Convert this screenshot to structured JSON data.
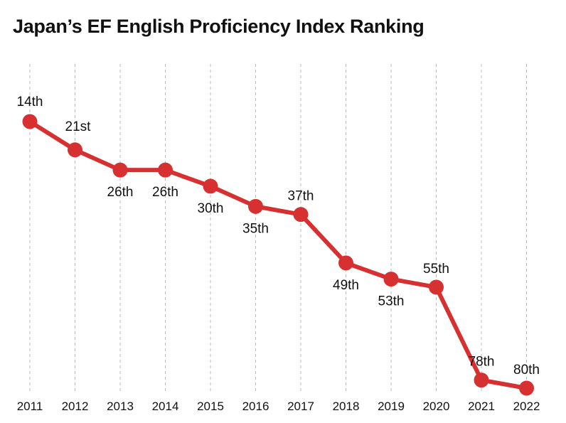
{
  "chart_data": {
    "type": "line",
    "title": "Japan’s EF English Proficiency Index Ranking",
    "xlabel": "",
    "ylabel": "",
    "categories": [
      "2011",
      "2012",
      "2013",
      "2014",
      "2015",
      "2016",
      "2017",
      "2018",
      "2019",
      "2020",
      "2021",
      "2022"
    ],
    "values": [
      14,
      21,
      26,
      26,
      30,
      35,
      37,
      49,
      53,
      55,
      78,
      80
    ],
    "labels": [
      "14th",
      "21st",
      "26th",
      "26th",
      "30th",
      "35th",
      "37th",
      "49th",
      "53th",
      "55th",
      "78th",
      "80th"
    ],
    "label_placement": [
      "above",
      "above",
      "below",
      "below",
      "below",
      "below",
      "above",
      "below",
      "below",
      "above",
      "above",
      "above"
    ],
    "ylim": [
      14,
      80
    ],
    "y_inverted": true,
    "grid": "vertical dashed",
    "legend": "none",
    "line_color": "#d63031"
  }
}
